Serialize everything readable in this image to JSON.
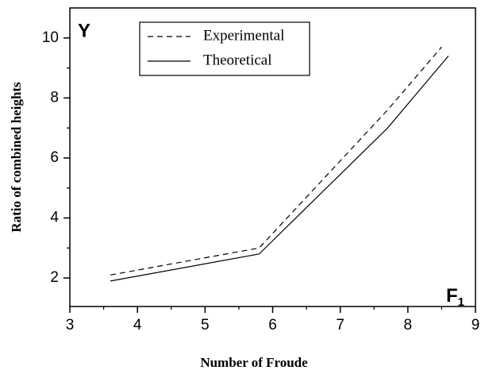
{
  "chart_data": {
    "type": "line",
    "x_label": "Number of Froude",
    "y_label": "Ratio of combined heights",
    "y_symbol": "Y",
    "x_symbol": "F",
    "x_symbol_subscript": "1",
    "series": [
      {
        "name": "Experimental",
        "color": "#000000",
        "dash": true,
        "x": [
          3.6,
          5.8,
          7.7,
          8.5
        ],
        "values": [
          2.1,
          3.0,
          7.6,
          9.7
        ]
      },
      {
        "name": "Theoretical",
        "color": "#000000",
        "dash": false,
        "x": [
          3.6,
          5.8,
          7.7,
          8.6
        ],
        "values": [
          1.9,
          2.8,
          7.0,
          9.4
        ]
      }
    ],
    "xlim": [
      3,
      9
    ],
    "ylim": [
      1.05,
      11
    ],
    "xticks": [
      3,
      4,
      5,
      6,
      7,
      8,
      9
    ],
    "yticks": [
      2,
      4,
      6,
      8,
      10
    ],
    "xticks_minor": [
      3.5,
      4.5,
      5.5,
      6.5,
      7.5,
      8.5
    ],
    "yticks_minor": [
      3,
      5,
      7,
      9
    ],
    "grid": false,
    "legend": "upper left"
  }
}
